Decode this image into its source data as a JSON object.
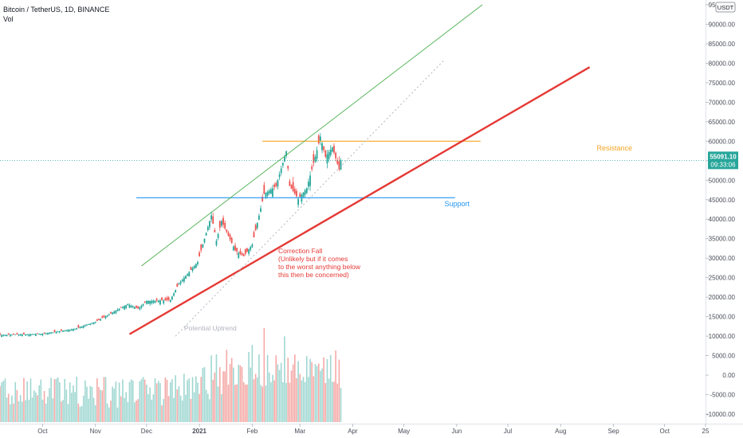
{
  "header": {
    "symbol": "Bitcoin / TetherUS, 1D, BINANCE",
    "volume_label": "Vol"
  },
  "currency_badge": "USDT",
  "price_tag": {
    "price": "55091.10",
    "countdown": "09:33:06"
  },
  "colors": {
    "up": "#26a69a",
    "down": "#ef5350",
    "up_vol": "#9fd7d1",
    "down_vol": "#f4a9a6",
    "resistance": "#f5a623",
    "support": "#2196f3",
    "trend": "#e53935",
    "channel": "#4caf50",
    "dotted": "#b2b5be",
    "axis_text": "#4a4e59"
  },
  "chart_data": {
    "type": "candlestick",
    "title": "Bitcoin / TetherUS, 1D, BINANCE",
    "y_axis": {
      "ticks": [
        "95000.00",
        "90000.00",
        "85000.00",
        "80000.00",
        "75000.00",
        "70000.00",
        "65000.00",
        "60000.00",
        "55000.00",
        "50000.00",
        "45000.00",
        "40000.00",
        "35000.00",
        "30000.00",
        "25000.00",
        "20000.00",
        "15000.00",
        "10000.00",
        "5000.00",
        "0.00",
        "-5000.00",
        "-10000.00"
      ],
      "range": [
        -10000,
        95000
      ]
    },
    "x_axis": {
      "ticks": [
        {
          "label": "Oct",
          "date": "2020-10-01"
        },
        {
          "label": "Nov",
          "date": "2020-11-01"
        },
        {
          "label": "Dec",
          "date": "2020-12-01"
        },
        {
          "label": "2021",
          "date": "2021-01-01"
        },
        {
          "label": "Feb",
          "date": "2021-02-01"
        },
        {
          "label": "Mar",
          "date": "2021-03-01"
        },
        {
          "label": "Apr",
          "date": "2021-04-01"
        },
        {
          "label": "May",
          "date": "2021-05-01"
        },
        {
          "label": "Jun",
          "date": "2021-06-01"
        },
        {
          "label": "Jul",
          "date": "2021-07-01"
        },
        {
          "label": "Aug",
          "date": "2021-08-01"
        },
        {
          "label": "Sep",
          "date": "2021-09-01"
        },
        {
          "label": "Oct",
          "date": "2021-10-01"
        },
        {
          "label": "25",
          "date": "2021-10-25"
        }
      ],
      "range": [
        "2020-09-06",
        "2021-10-25"
      ]
    },
    "price_keypoints": [
      [
        "2020-09-06",
        10300
      ],
      [
        "2020-10-01",
        10600
      ],
      [
        "2020-10-20",
        11900
      ],
      [
        "2020-11-01",
        13700
      ],
      [
        "2020-11-20",
        18200
      ],
      [
        "2020-11-26",
        17100
      ],
      [
        "2020-12-01",
        19000
      ],
      [
        "2020-12-15",
        19300
      ],
      [
        "2020-12-20",
        23500
      ],
      [
        "2020-12-31",
        29000
      ],
      [
        "2021-01-08",
        41000
      ],
      [
        "2021-01-11",
        34500
      ],
      [
        "2021-01-14",
        39500
      ],
      [
        "2021-01-22",
        32000
      ],
      [
        "2021-01-27",
        30500
      ],
      [
        "2021-02-01",
        33500
      ],
      [
        "2021-02-08",
        46500
      ],
      [
        "2021-02-15",
        48500
      ],
      [
        "2021-02-21",
        57500
      ],
      [
        "2021-02-23",
        48500
      ],
      [
        "2021-02-28",
        45200
      ],
      [
        "2021-03-05",
        48000
      ],
      [
        "2021-03-10",
        56000
      ],
      [
        "2021-03-13",
        61200
      ],
      [
        "2021-03-16",
        56000
      ],
      [
        "2021-03-20",
        58500
      ],
      [
        "2021-03-24",
        52800
      ],
      [
        "2021-03-25",
        55091
      ]
    ],
    "last_price": 55091.1,
    "drawings": [
      {
        "type": "horizontal_segment",
        "label": "Resistance",
        "value": 60000,
        "from": "2021-02-07",
        "to": "2021-06-15"
      },
      {
        "type": "horizontal_segment",
        "label": "Support",
        "value": 45500,
        "from": "2020-11-25",
        "to": "2021-05-31"
      },
      {
        "type": "trend_line",
        "name": "correction-trend",
        "from": [
          "2020-11-21",
          10500
        ],
        "to": [
          "2021-08-18",
          79000
        ]
      },
      {
        "type": "trend_line",
        "name": "channel-upper",
        "from": [
          "2020-11-28",
          28000
        ],
        "to": [
          "2021-06-16",
          95000
        ]
      },
      {
        "type": "trend_line",
        "name": "potential-uptrend",
        "dotted": true,
        "from": [
          "2020-12-18",
          10000
        ],
        "to": [
          "2021-05-25",
          81000
        ]
      }
    ],
    "annotations": [
      {
        "text_lines": [
          "Correction Fall",
          "(Unlikely but if it comes",
          "to the worst anything below",
          "this then be concerned)"
        ],
        "color": "#e53935"
      },
      {
        "text": "Potential Uptrend",
        "color": "#b2b5be"
      }
    ]
  }
}
